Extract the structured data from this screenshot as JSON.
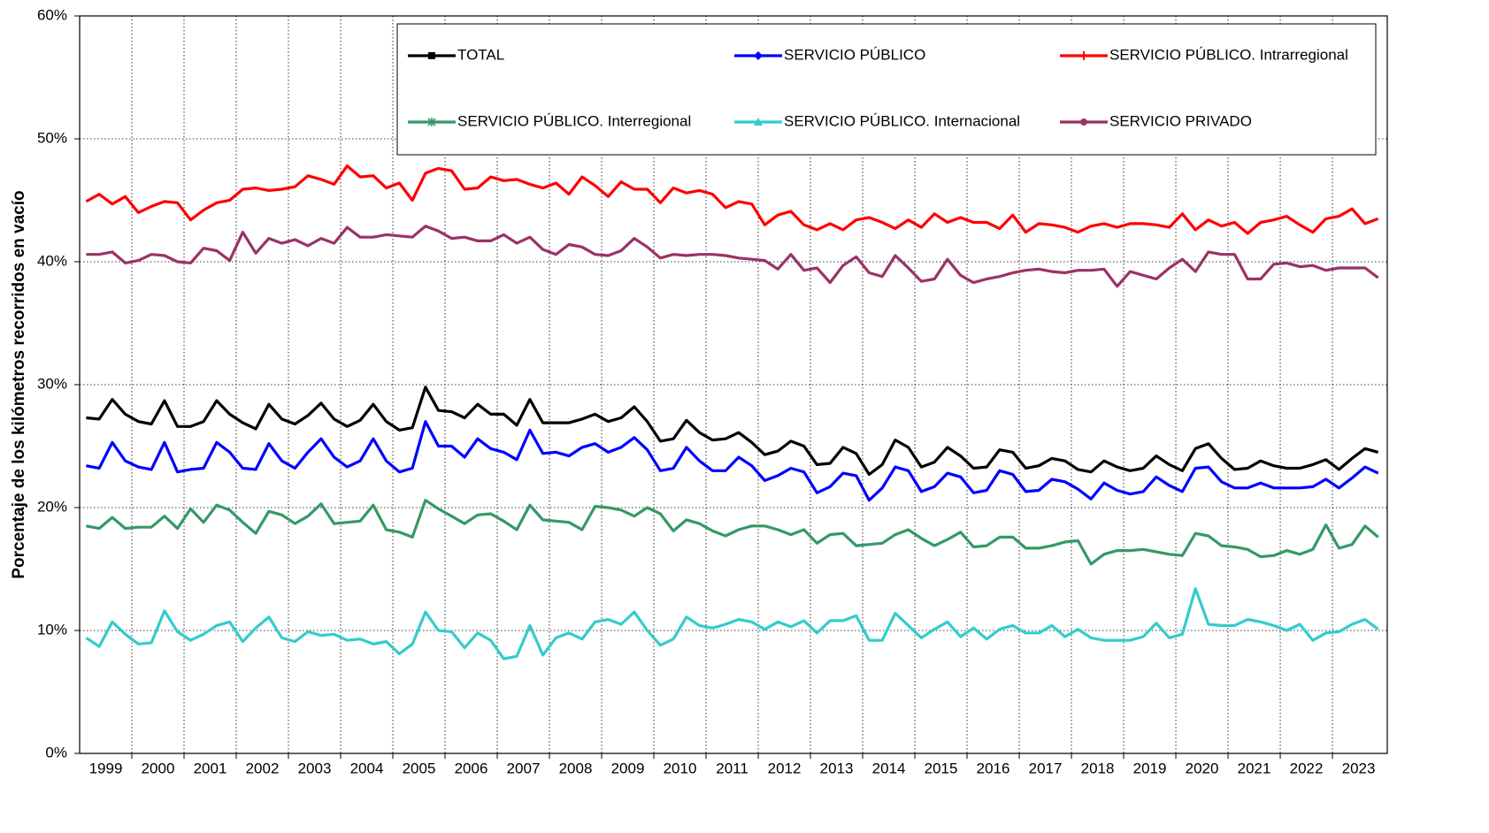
{
  "chart_data": {
    "type": "line",
    "y_label": "Porcentaje de los kilómetros recorridos en vacío",
    "ylim": [
      0,
      60
    ],
    "yticks": [
      {
        "value": 0,
        "label": "0%"
      },
      {
        "value": 10,
        "label": "10%"
      },
      {
        "value": 20,
        "label": "20%"
      },
      {
        "value": 30,
        "label": "30%"
      },
      {
        "value": 40,
        "label": "40%"
      },
      {
        "value": 50,
        "label": "50%"
      },
      {
        "value": 60,
        "label": "60%"
      }
    ],
    "xlim": [
      1999,
      2024.05
    ],
    "xticks": [
      {
        "value": 1999.5,
        "label": "1999"
      },
      {
        "value": 2000.5,
        "label": "2000"
      },
      {
        "value": 2001.5,
        "label": "2001"
      },
      {
        "value": 2002.5,
        "label": "2002"
      },
      {
        "value": 2003.5,
        "label": "2003"
      },
      {
        "value": 2004.5,
        "label": "2004"
      },
      {
        "value": 2005.5,
        "label": "2005"
      },
      {
        "value": 2006.5,
        "label": "2006"
      },
      {
        "value": 2007.5,
        "label": "2007"
      },
      {
        "value": 2008.5,
        "label": "2008"
      },
      {
        "value": 2009.5,
        "label": "2009"
      },
      {
        "value": 2010.5,
        "label": "2010"
      },
      {
        "value": 2011.5,
        "label": "2011"
      },
      {
        "value": 2012.5,
        "label": "2012"
      },
      {
        "value": 2013.5,
        "label": "2013"
      },
      {
        "value": 2014.5,
        "label": "2014"
      },
      {
        "value": 2015.5,
        "label": "2015"
      },
      {
        "value": 2016.5,
        "label": "2016"
      },
      {
        "value": 2017.5,
        "label": "2017"
      },
      {
        "value": 2018.5,
        "label": "2018"
      },
      {
        "value": 2019.5,
        "label": "2019"
      },
      {
        "value": 2020.5,
        "label": "2020"
      },
      {
        "value": 2021.5,
        "label": "2021"
      },
      {
        "value": 2022.5,
        "label": "2022"
      },
      {
        "value": 2023.5,
        "label": "2023"
      }
    ],
    "xgrid": [
      2000,
      2001,
      2002,
      2003,
      2004,
      2005,
      2006,
      2007,
      2008,
      2009,
      2010,
      2011,
      2012,
      2013,
      2014,
      2015,
      2016,
      2017,
      2018,
      2019,
      2020,
      2021,
      2022,
      2023
    ],
    "grid": true,
    "x": [
      1999.125,
      1999.375,
      1999.625,
      1999.875,
      2000.125,
      2000.375,
      2000.625,
      2000.875,
      2001.125,
      2001.375,
      2001.625,
      2001.875,
      2002.125,
      2002.375,
      2002.625,
      2002.875,
      2003.125,
      2003.375,
      2003.625,
      2003.875,
      2004.125,
      2004.375,
      2004.625,
      2004.875,
      2005.125,
      2005.375,
      2005.625,
      2005.875,
      2006.125,
      2006.375,
      2006.625,
      2006.875,
      2007.125,
      2007.375,
      2007.625,
      2007.875,
      2008.125,
      2008.375,
      2008.625,
      2008.875,
      2009.125,
      2009.375,
      2009.625,
      2009.875,
      2010.125,
      2010.375,
      2010.625,
      2010.875,
      2011.125,
      2011.375,
      2011.625,
      2011.875,
      2012.125,
      2012.375,
      2012.625,
      2012.875,
      2013.125,
      2013.375,
      2013.625,
      2013.875,
      2014.125,
      2014.375,
      2014.625,
      2014.875,
      2015.125,
      2015.375,
      2015.625,
      2015.875,
      2016.125,
      2016.375,
      2016.625,
      2016.875,
      2017.125,
      2017.375,
      2017.625,
      2017.875,
      2018.125,
      2018.375,
      2018.625,
      2018.875,
      2019.125,
      2019.375,
      2019.625,
      2019.875,
      2020.125,
      2020.375,
      2020.625,
      2020.875,
      2021.125,
      2021.375,
      2021.625,
      2021.875,
      2022.125,
      2022.375,
      2022.625,
      2022.875,
      2023.125,
      2023.375,
      2023.625,
      2023.875
    ],
    "series": [
      {
        "name": "TOTAL",
        "color": "#000000",
        "marker": "square",
        "values": [
          27.3,
          27.2,
          28.8,
          27.6,
          27.0,
          26.8,
          28.7,
          26.6,
          26.6,
          27.0,
          28.7,
          27.6,
          26.9,
          26.4,
          28.4,
          27.2,
          26.8,
          27.5,
          28.5,
          27.2,
          26.6,
          27.1,
          28.4,
          27.0,
          26.3,
          26.5,
          29.8,
          27.9,
          27.8,
          27.3,
          28.4,
          27.6,
          27.6,
          26.7,
          28.8,
          26.9,
          26.9,
          26.9,
          27.2,
          27.6,
          27.0,
          27.3,
          28.2,
          27.0,
          25.4,
          25.6,
          27.1,
          26.1,
          25.5,
          25.6,
          26.1,
          25.3,
          24.3,
          24.6,
          25.4,
          25.0,
          23.5,
          23.6,
          24.9,
          24.4,
          22.7,
          23.5,
          25.5,
          24.9,
          23.3,
          23.7,
          24.9,
          24.2,
          23.2,
          23.3,
          24.7,
          24.5,
          23.2,
          23.4,
          24.0,
          23.8,
          23.1,
          22.9,
          23.8,
          23.3,
          23.0,
          23.2,
          24.2,
          23.5,
          23.0,
          24.8,
          25.2,
          24.0,
          23.1,
          23.2,
          23.8,
          23.4,
          23.2,
          23.2,
          23.5,
          23.9,
          23.1,
          24.0,
          24.8,
          24.5
        ]
      },
      {
        "name": "SERVICIO PÚBLICO",
        "color": "#0000ff",
        "marker": "diamond",
        "values": [
          23.4,
          23.2,
          25.3,
          23.8,
          23.3,
          23.1,
          25.3,
          22.9,
          23.1,
          23.2,
          25.3,
          24.5,
          23.2,
          23.1,
          25.2,
          23.8,
          23.2,
          24.5,
          25.6,
          24.1,
          23.3,
          23.8,
          25.6,
          23.8,
          22.9,
          23.2,
          27.0,
          25.0,
          25.0,
          24.1,
          25.6,
          24.8,
          24.5,
          23.9,
          26.3,
          24.4,
          24.5,
          24.2,
          24.9,
          25.2,
          24.5,
          24.9,
          25.7,
          24.7,
          23.0,
          23.2,
          24.9,
          23.8,
          23.0,
          23.0,
          24.1,
          23.4,
          22.2,
          22.6,
          23.2,
          22.9,
          21.2,
          21.7,
          22.8,
          22.6,
          20.6,
          21.6,
          23.3,
          23.0,
          21.3,
          21.7,
          22.8,
          22.5,
          21.2,
          21.4,
          23.0,
          22.7,
          21.3,
          21.4,
          22.3,
          22.1,
          21.5,
          20.7,
          22.0,
          21.4,
          21.1,
          21.3,
          22.5,
          21.8,
          21.3,
          23.2,
          23.3,
          22.1,
          21.6,
          21.6,
          22.0,
          21.6,
          21.6,
          21.6,
          21.7,
          22.3,
          21.6,
          22.4,
          23.3,
          22.8
        ]
      },
      {
        "name": "SERVICIO PÚBLICO. Intrarregional",
        "color": "#ff0000",
        "marker": "plus",
        "values": [
          44.9,
          45.5,
          44.7,
          45.3,
          44.0,
          44.5,
          44.9,
          44.8,
          43.4,
          44.2,
          44.8,
          45.0,
          45.9,
          46.0,
          45.8,
          45.9,
          46.1,
          47.0,
          46.7,
          46.3,
          47.8,
          46.9,
          47.0,
          46.0,
          46.4,
          45.0,
          47.2,
          47.6,
          47.4,
          45.9,
          46.0,
          46.9,
          46.6,
          46.7,
          46.3,
          46.0,
          46.4,
          45.5,
          46.9,
          46.2,
          45.3,
          46.5,
          45.9,
          45.9,
          44.8,
          46.0,
          45.6,
          45.8,
          45.5,
          44.4,
          44.9,
          44.7,
          43.0,
          43.8,
          44.1,
          43.0,
          42.6,
          43.1,
          42.6,
          43.4,
          43.6,
          43.2,
          42.7,
          43.4,
          42.8,
          43.9,
          43.2,
          43.6,
          43.2,
          43.2,
          42.7,
          43.8,
          42.4,
          43.1,
          43.0,
          42.8,
          42.4,
          42.9,
          43.1,
          42.8,
          43.1,
          43.1,
          43.0,
          42.8,
          43.9,
          42.6,
          43.4,
          42.9,
          43.2,
          42.3,
          43.2,
          43.4,
          43.7,
          43.0,
          42.4,
          43.5,
          43.7,
          44.3,
          43.1,
          43.5
        ]
      },
      {
        "name": "SERVICIO PÚBLICO. Interregional",
        "color": "#339966",
        "marker": "star",
        "values": [
          18.5,
          18.3,
          19.2,
          18.3,
          18.4,
          18.4,
          19.3,
          18.3,
          19.9,
          18.8,
          20.2,
          19.8,
          18.8,
          17.9,
          19.7,
          19.4,
          18.7,
          19.3,
          20.3,
          18.7,
          18.8,
          18.9,
          20.2,
          18.2,
          18.0,
          17.6,
          20.6,
          19.9,
          19.3,
          18.7,
          19.4,
          19.5,
          18.9,
          18.2,
          20.2,
          19.0,
          18.9,
          18.8,
          18.2,
          20.1,
          20.0,
          19.8,
          19.3,
          20.0,
          19.5,
          18.1,
          19.0,
          18.7,
          18.1,
          17.7,
          18.2,
          18.5,
          18.5,
          18.2,
          17.8,
          18.2,
          17.1,
          17.8,
          17.9,
          16.9,
          17.0,
          17.1,
          17.8,
          18.2,
          17.5,
          16.9,
          17.4,
          18.0,
          16.8,
          16.9,
          17.6,
          17.6,
          16.7,
          16.7,
          16.9,
          17.2,
          17.3,
          15.4,
          16.2,
          16.5,
          16.5,
          16.6,
          16.4,
          16.2,
          16.1,
          17.9,
          17.7,
          16.9,
          16.8,
          16.6,
          16.0,
          16.1,
          16.5,
          16.2,
          16.6,
          18.6,
          16.7,
          17.0,
          18.5,
          17.6
        ]
      },
      {
        "name": "SERVICIO PÚBLICO. Internacional",
        "color": "#33cccc",
        "marker": "triangle",
        "values": [
          9.4,
          8.7,
          10.7,
          9.7,
          8.9,
          9.0,
          11.6,
          9.9,
          9.2,
          9.7,
          10.4,
          10.7,
          9.1,
          10.2,
          11.1,
          9.4,
          9.1,
          9.9,
          9.6,
          9.7,
          9.2,
          9.3,
          8.9,
          9.1,
          8.1,
          8.9,
          11.5,
          10.0,
          9.9,
          8.6,
          9.8,
          9.2,
          7.7,
          7.9,
          10.4,
          8.0,
          9.4,
          9.8,
          9.3,
          10.7,
          10.9,
          10.5,
          11.5,
          10.0,
          8.8,
          9.3,
          11.1,
          10.4,
          10.2,
          10.5,
          10.9,
          10.7,
          10.1,
          10.7,
          10.3,
          10.8,
          9.8,
          10.8,
          10.8,
          11.2,
          9.2,
          9.2,
          11.4,
          10.4,
          9.4,
          10.1,
          10.7,
          9.5,
          10.2,
          9.3,
          10.1,
          10.4,
          9.8,
          9.8,
          10.4,
          9.5,
          10.1,
          9.4,
          9.2,
          9.2,
          9.2,
          9.5,
          10.6,
          9.4,
          9.7,
          13.4,
          10.5,
          10.4,
          10.4,
          10.9,
          10.7,
          10.4,
          10.0,
          10.5,
          9.2,
          9.8,
          9.9,
          10.5,
          10.9,
          10.1
        ]
      },
      {
        "name": "SERVICIO PRIVADO",
        "color": "#993366",
        "marker": "circle",
        "values": [
          40.6,
          40.6,
          40.8,
          39.9,
          40.1,
          40.6,
          40.5,
          40.0,
          39.9,
          41.1,
          40.9,
          40.1,
          42.4,
          40.7,
          41.9,
          41.5,
          41.8,
          41.3,
          41.9,
          41.5,
          42.8,
          42.0,
          42.0,
          42.2,
          42.1,
          42.0,
          42.9,
          42.5,
          41.9,
          42.0,
          41.7,
          41.7,
          42.2,
          41.5,
          42.0,
          41.0,
          40.6,
          41.4,
          41.2,
          40.6,
          40.5,
          40.9,
          41.9,
          41.2,
          40.3,
          40.6,
          40.5,
          40.6,
          40.6,
          40.5,
          40.3,
          40.2,
          40.1,
          39.4,
          40.6,
          39.3,
          39.5,
          38.3,
          39.7,
          40.4,
          39.1,
          38.8,
          40.5,
          39.5,
          38.4,
          38.6,
          40.2,
          38.9,
          38.3,
          38.6,
          38.8,
          39.1,
          39.3,
          39.4,
          39.2,
          39.1,
          39.3,
          39.3,
          39.4,
          38.0,
          39.2,
          38.9,
          38.6,
          39.5,
          40.2,
          39.2,
          40.8,
          40.6,
          40.6,
          38.6,
          38.6,
          39.8,
          39.9,
          39.6,
          39.7,
          39.3,
          39.5,
          39.5,
          39.5,
          38.7
        ]
      }
    ]
  }
}
